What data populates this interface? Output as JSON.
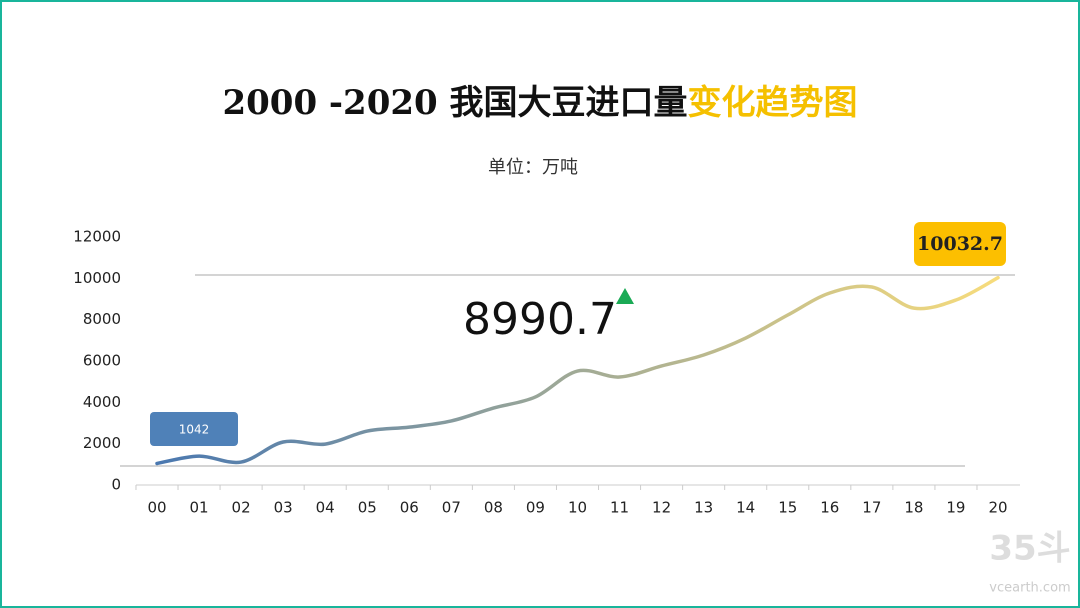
{
  "chart_data": {
    "type": "line",
    "title": [
      {
        "text": "2000 -2020 我国大豆进口量",
        "color": "#111111"
      },
      {
        "text": "变化趋势图",
        "color": "#f5c000"
      }
    ],
    "subtitle": "单位：万吨",
    "categories": [
      "00",
      "01",
      "02",
      "03",
      "04",
      "05",
      "06",
      "07",
      "08",
      "09",
      "10",
      "11",
      "12",
      "13",
      "14",
      "15",
      "16",
      "17",
      "18",
      "19",
      "20"
    ],
    "values": [
      1042,
      1400,
      1110,
      2080,
      1980,
      2610,
      2800,
      3100,
      3725,
      4260,
      5515,
      5225,
      5760,
      6290,
      7110,
      8225,
      9290,
      9580,
      8560,
      8950,
      10032.7
    ],
    "color_start": "#4a78b0",
    "color_end": "#f7dc7c",
    "ylim": [
      0,
      12000
    ],
    "yticks": [
      0,
      2000,
      4000,
      6000,
      8000,
      10000,
      12000
    ],
    "grid": false,
    "annotation": "8990.7",
    "annotation_marker_color": "#1aaa55",
    "start_label_color": "#4f81b8",
    "end_label_color": "#fcbf00",
    "watermark": [
      "35斗",
      "vcearth.com"
    ]
  }
}
